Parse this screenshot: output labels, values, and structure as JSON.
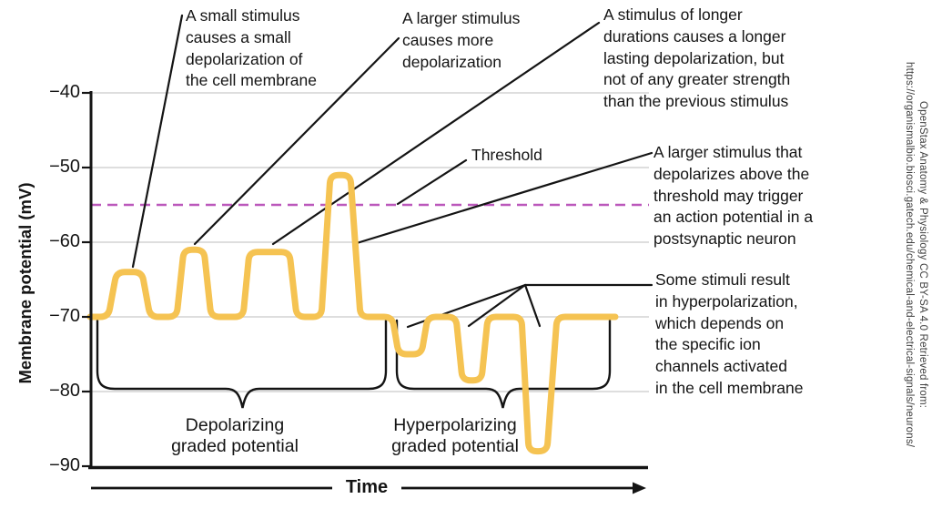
{
  "chart_data": {
    "type": "line",
    "xlabel": "Time",
    "ylabel": "Membrane potential (mV)",
    "ylim": [
      -90,
      -40
    ],
    "yticks": [
      -40,
      -50,
      -60,
      -70,
      -80,
      -90
    ],
    "ytick_labels": [
      "−40",
      "−50",
      "−60",
      "−70",
      "−80",
      "−90"
    ],
    "grid": true,
    "resting_potential_mV": -70,
    "threshold": {
      "value_mV": -55,
      "label": "Threshold",
      "color": "#bb58bb",
      "style": "dashed"
    },
    "series": [
      {
        "name": "membrane potential",
        "color": "#f5c352",
        "points": [
          [
            99,
            -70
          ],
          [
            119,
            -70
          ],
          [
            128,
            -64
          ],
          [
            156,
            -64
          ],
          [
            165,
            -70
          ],
          [
            194,
            -70
          ],
          [
            202,
            -61
          ],
          [
            224,
            -61
          ],
          [
            232,
            -70
          ],
          [
            267,
            -70
          ],
          [
            274,
            -61.3
          ],
          [
            318,
            -61.3
          ],
          [
            326,
            -70
          ],
          [
            353,
            -70
          ],
          [
            363,
            -51
          ],
          [
            385,
            -51
          ],
          [
            396,
            -70
          ],
          [
            431,
            -70
          ],
          [
            438,
            -75
          ],
          [
            463,
            -75
          ],
          [
            470,
            -70
          ],
          [
            501,
            -70
          ],
          [
            508,
            -78.5
          ],
          [
            529,
            -78.5
          ],
          [
            536,
            -70
          ],
          [
            573,
            -70
          ],
          [
            581,
            -88
          ],
          [
            601,
            -88
          ],
          [
            612,
            -70
          ],
          [
            676,
            -70
          ]
        ]
      }
    ],
    "depolarizing_event_peaks_mV": [
      -64,
      -61,
      -61,
      -51
    ],
    "hyperpolarizing_event_peaks_mV": [
      -75,
      -78.5,
      -88
    ]
  },
  "annotations": {
    "small_stimulus": {
      "text": "A small stimulus\ncauses a small\ndepolarization of\nthe cell membrane"
    },
    "larger_stimulus": {
      "text": "A larger stimulus\ncauses more\ndepolarization"
    },
    "longer_stimulus": {
      "text": "A stimulus of longer\ndurations causes a longer\nlasting depolarization, but\nnot of any greater strength\nthan the previous stimulus"
    },
    "above_threshold": {
      "text": "A larger stimulus that\ndepolarizes above the\nthreshold may trigger\nan action potential in a\npostsynaptic neuron"
    },
    "hyperpolarization": {
      "text": "Some stimuli result\nin hyperpolarization,\nwhich depends on\nthe specific ion\nchannels activated\nin the cell membrane"
    },
    "depolarizing_bracket": "Depolarizing\ngraded potential",
    "hyperpolarizing_bracket": "Hyperpolarizing\ngraded potential"
  },
  "attribution": {
    "line1": "OpenStax Anatomy & Physiology CC BY-SA 4.0 Retrieved from:",
    "line2": "https://organismalbio.biosci.gatech.edu/chemical-and-electrical-signals/neurons/"
  }
}
